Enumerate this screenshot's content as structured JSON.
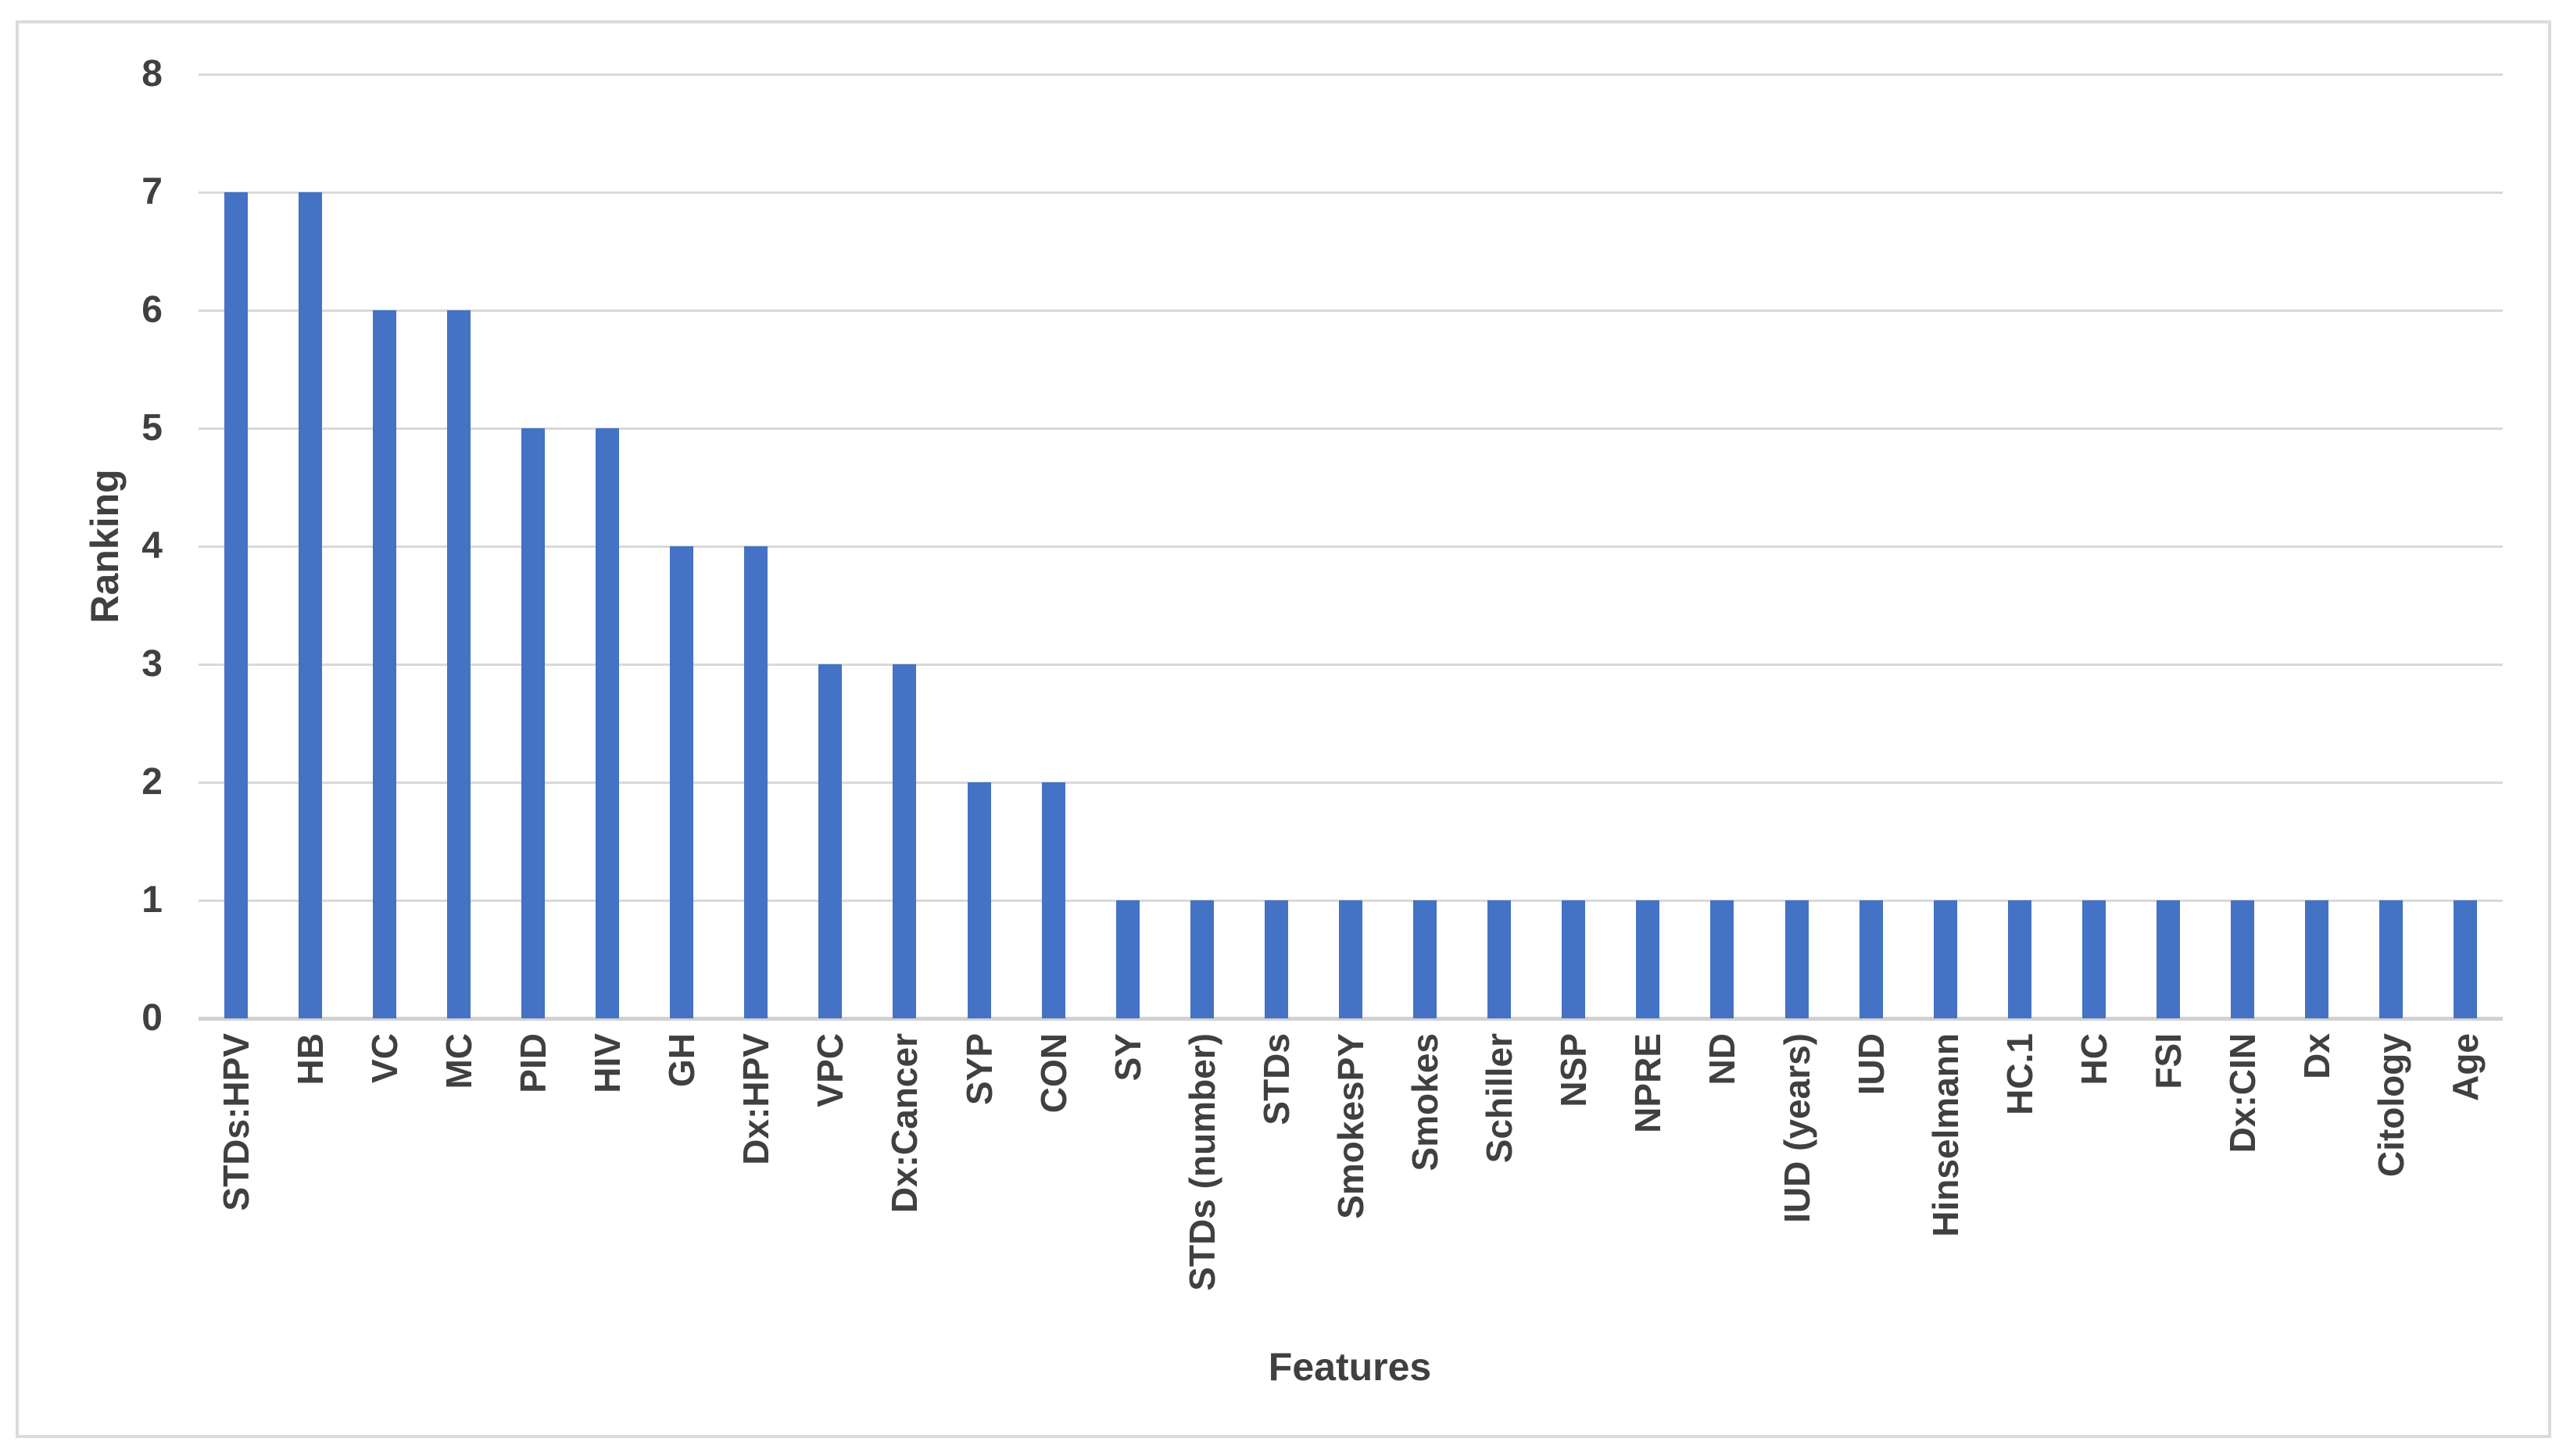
{
  "chart_data": {
    "type": "bar",
    "title": "",
    "xlabel": "Features",
    "ylabel": "Ranking",
    "categories": [
      "STDs:HPV",
      "HB",
      "VC",
      "MC",
      "PID",
      "HIV",
      "GH",
      "Dx:HPV",
      "VPC",
      "Dx:Cancer",
      "SYP",
      "CON",
      "SY",
      "STDs (number)",
      "STDs",
      "SmokesPY",
      "Smokes",
      "Schiller",
      "NSP",
      "NPRE",
      "ND",
      "IUD (years)",
      "IUD",
      "Hinselmann",
      "HC.1",
      "HC",
      "FSI",
      "Dx:CIN",
      "Dx",
      "Citology",
      "Age"
    ],
    "values": [
      7,
      7,
      6,
      6,
      5,
      5,
      4,
      4,
      3,
      3,
      2,
      2,
      1,
      1,
      1,
      1,
      1,
      1,
      1,
      1,
      1,
      1,
      1,
      1,
      1,
      1,
      1,
      1,
      1,
      1,
      1
    ],
    "ylim": [
      0,
      8
    ],
    "yticks": [
      0,
      1,
      2,
      3,
      4,
      5,
      6,
      7,
      8
    ],
    "grid": true,
    "legend": false,
    "bar_color": "#4472C4",
    "gridline_color": "#D9D9D9",
    "axis_line_color": "#D1D1D1",
    "text_color": "#404040",
    "frame_border_color": "#DBDBDB"
  }
}
